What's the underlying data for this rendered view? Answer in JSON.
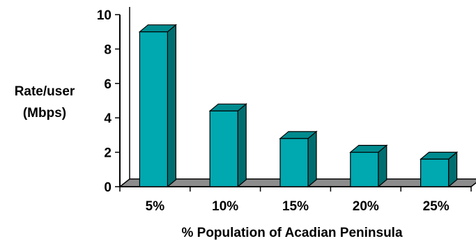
{
  "chart_data": {
    "type": "bar",
    "categories": [
      "5%",
      "10%",
      "15%",
      "20%",
      "25%"
    ],
    "values": [
      9.0,
      4.4,
      2.8,
      2.0,
      1.6
    ],
    "xlabel": "% Population of Acadian Peninsula",
    "ylabel_lines": [
      "Rate/user",
      "(Mbps)"
    ],
    "ylim": [
      0,
      10
    ],
    "yticks": [
      "0",
      "2",
      "4",
      "6",
      "8",
      "10"
    ],
    "grid": false,
    "legend": "none",
    "colors": {
      "bar_front": "#00a8b0",
      "bar_side": "#006e70",
      "bar_top": "#008b8f",
      "floor": "#8c8c8c",
      "axis": "#000000"
    }
  }
}
